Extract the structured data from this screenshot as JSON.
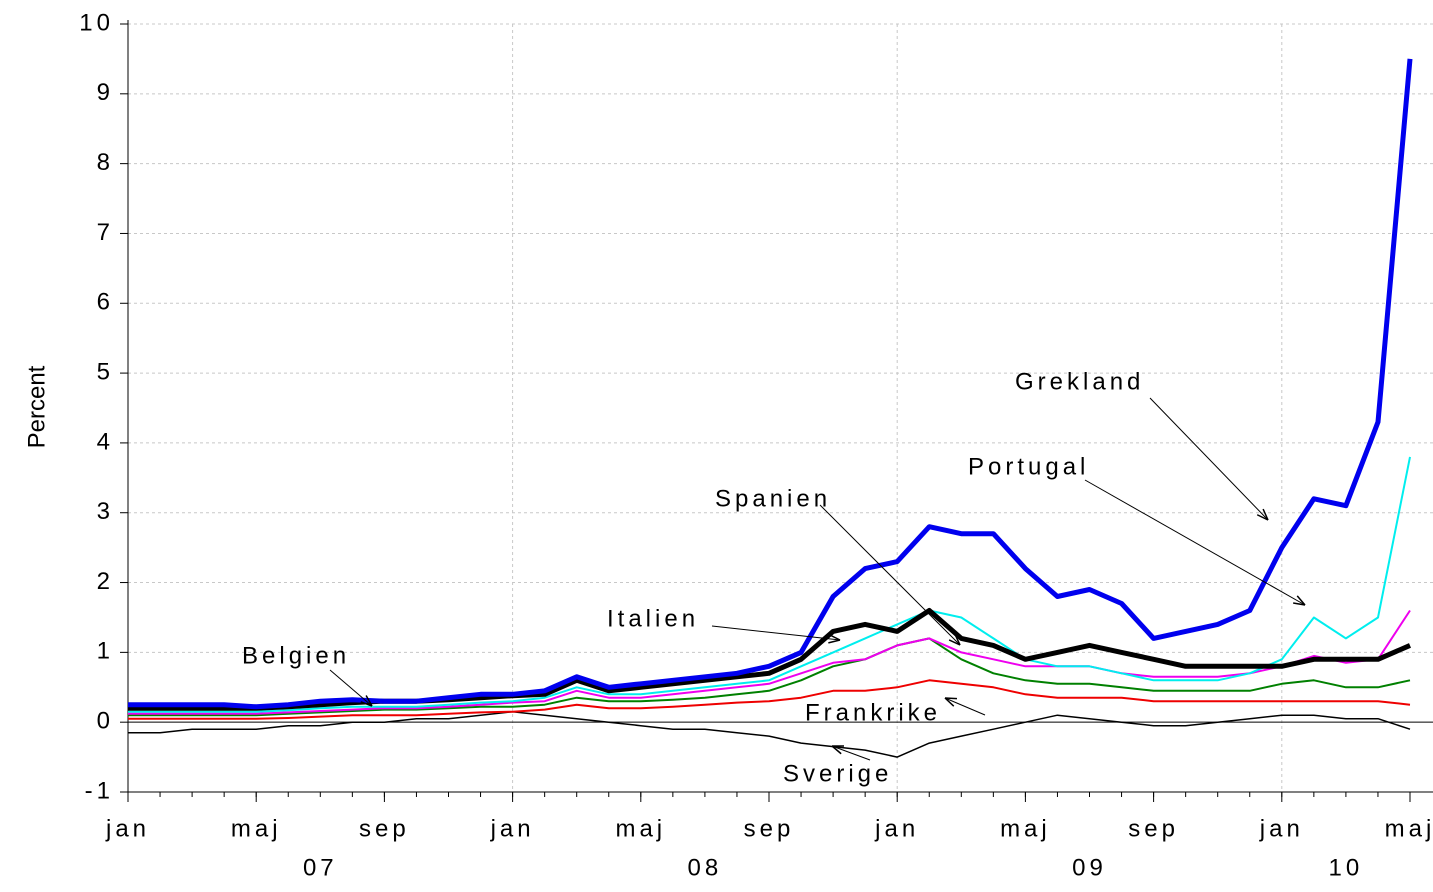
{
  "chart_data": {
    "type": "line",
    "y_label": "Percent",
    "x": [
      "2007-01",
      "2007-02",
      "2007-03",
      "2007-04",
      "2007-05",
      "2007-06",
      "2007-07",
      "2007-08",
      "2007-09",
      "2007-10",
      "2007-11",
      "2007-12",
      "2008-01",
      "2008-02",
      "2008-03",
      "2008-04",
      "2008-05",
      "2008-06",
      "2008-07",
      "2008-08",
      "2008-09",
      "2008-10",
      "2008-11",
      "2008-12",
      "2009-01",
      "2009-02",
      "2009-03",
      "2009-04",
      "2009-05",
      "2009-06",
      "2009-07",
      "2009-08",
      "2009-09",
      "2009-10",
      "2009-11",
      "2009-12",
      "2010-01",
      "2010-02",
      "2010-03",
      "2010-04",
      "2010-05"
    ],
    "xlim": [
      "2007-01",
      "2010-05"
    ],
    "xticks": [
      {
        "value": "2007-01",
        "label": "jan"
      },
      {
        "value": "2007-05",
        "label": "maj"
      },
      {
        "value": "2007-09",
        "label": "sep"
      },
      {
        "value": "2008-01",
        "label": "jan"
      },
      {
        "value": "2008-05",
        "label": "maj"
      },
      {
        "value": "2008-09",
        "label": "sep"
      },
      {
        "value": "2009-01",
        "label": "jan"
      },
      {
        "value": "2009-05",
        "label": "maj"
      },
      {
        "value": "2009-09",
        "label": "sep"
      },
      {
        "value": "2010-01",
        "label": "jan"
      },
      {
        "value": "2010-05",
        "label": "maj"
      }
    ],
    "year_labels": [
      {
        "value": "2007-07",
        "label": "07"
      },
      {
        "value": "2008-07",
        "label": "08"
      },
      {
        "value": "2009-07",
        "label": "09"
      },
      {
        "value": "2010-03",
        "label": "10"
      }
    ],
    "ylim": [
      -1,
      10
    ],
    "yticks": [
      -1,
      0,
      1,
      2,
      3,
      4,
      5,
      6,
      7,
      8,
      9,
      10
    ],
    "grid": true,
    "series": [
      {
        "name": "Grekland",
        "color": "#0000ee",
        "values": [
          0.25,
          0.25,
          0.25,
          0.25,
          0.22,
          0.25,
          0.3,
          0.32,
          0.3,
          0.3,
          0.35,
          0.4,
          0.4,
          0.45,
          0.65,
          0.5,
          0.55,
          0.6,
          0.65,
          0.7,
          0.8,
          1.0,
          1.8,
          2.2,
          2.3,
          2.8,
          2.7,
          2.7,
          2.2,
          1.8,
          1.9,
          1.7,
          1.2,
          1.3,
          1.4,
          1.6,
          2.5,
          3.2,
          3.1,
          4.3,
          9.5
        ]
      },
      {
        "name": "Portugal",
        "color": "#00eeee",
        "values": [
          0.15,
          0.15,
          0.15,
          0.15,
          0.15,
          0.17,
          0.2,
          0.22,
          0.22,
          0.22,
          0.25,
          0.28,
          0.3,
          0.35,
          0.5,
          0.4,
          0.4,
          0.45,
          0.5,
          0.55,
          0.6,
          0.8,
          1.0,
          1.2,
          1.4,
          1.6,
          1.5,
          1.2,
          0.9,
          0.8,
          0.8,
          0.7,
          0.6,
          0.6,
          0.6,
          0.7,
          0.9,
          1.5,
          1.2,
          1.5,
          3.8
        ]
      },
      {
        "name": "Spanien",
        "color": "#000000",
        "values": [
          0.2,
          0.2,
          0.2,
          0.2,
          0.2,
          0.22,
          0.25,
          0.28,
          0.3,
          0.3,
          0.32,
          0.35,
          0.38,
          0.4,
          0.6,
          0.45,
          0.5,
          0.55,
          0.6,
          0.65,
          0.7,
          0.9,
          1.3,
          1.4,
          1.3,
          1.6,
          1.2,
          1.1,
          0.9,
          1.0,
          1.1,
          1.0,
          0.9,
          0.8,
          0.8,
          0.8,
          0.8,
          0.9,
          0.9,
          0.9,
          1.1
        ]
      },
      {
        "name": "Italien",
        "color": "#ee00ee",
        "values": [
          0.12,
          0.12,
          0.12,
          0.12,
          0.12,
          0.14,
          0.16,
          0.18,
          0.2,
          0.2,
          0.22,
          0.25,
          0.28,
          0.3,
          0.45,
          0.35,
          0.35,
          0.4,
          0.45,
          0.5,
          0.55,
          0.7,
          0.85,
          0.9,
          1.1,
          1.2,
          1.0,
          0.9,
          0.8,
          0.8,
          0.8,
          0.7,
          0.65,
          0.65,
          0.65,
          0.7,
          0.8,
          0.95,
          0.85,
          0.9,
          1.6
        ]
      },
      {
        "name": "Belgien",
        "color": "#008000",
        "values": [
          0.1,
          0.1,
          0.1,
          0.1,
          0.1,
          0.12,
          0.14,
          0.16,
          0.18,
          0.18,
          0.2,
          0.22,
          0.22,
          0.25,
          0.35,
          0.3,
          0.3,
          0.32,
          0.35,
          0.4,
          0.45,
          0.6,
          0.8,
          0.9,
          1.1,
          1.2,
          0.9,
          0.7,
          0.6,
          0.55,
          0.55,
          0.5,
          0.45,
          0.45,
          0.45,
          0.45,
          0.55,
          0.6,
          0.5,
          0.5,
          0.6
        ]
      },
      {
        "name": "Frankrike",
        "color": "#ee0000",
        "values": [
          0.05,
          0.05,
          0.05,
          0.05,
          0.05,
          0.06,
          0.08,
          0.1,
          0.1,
          0.1,
          0.12,
          0.14,
          0.15,
          0.18,
          0.25,
          0.2,
          0.2,
          0.22,
          0.25,
          0.28,
          0.3,
          0.35,
          0.45,
          0.45,
          0.5,
          0.6,
          0.55,
          0.5,
          0.4,
          0.35,
          0.35,
          0.35,
          0.3,
          0.3,
          0.3,
          0.3,
          0.3,
          0.3,
          0.3,
          0.3,
          0.25
        ]
      },
      {
        "name": "Sverige",
        "color": "#000000",
        "values": [
          -0.15,
          -0.15,
          -0.1,
          -0.1,
          -0.1,
          -0.05,
          -0.05,
          0,
          0,
          0.05,
          0.05,
          0.1,
          0.15,
          0.1,
          0.05,
          0.0,
          -0.05,
          -0.1,
          -0.1,
          -0.15,
          -0.2,
          -0.3,
          -0.35,
          -0.4,
          -0.5,
          -0.3,
          -0.2,
          -0.1,
          0,
          0.1,
          0.05,
          0,
          -0.05,
          -0.05,
          0,
          0.05,
          0.1,
          0.1,
          0.05,
          0.05,
          -0.1
        ]
      }
    ]
  }
}
